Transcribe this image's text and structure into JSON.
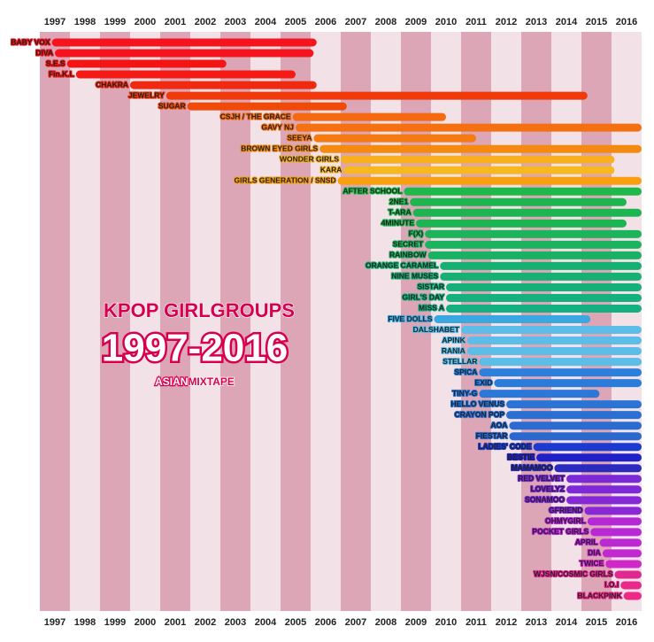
{
  "chart_data": {
    "type": "timeline",
    "title": "KPOP GIRLGROUPS",
    "subtitle": "1997-2016",
    "credit": [
      "ASIAN",
      "MIXTAPE"
    ],
    "xlim": [
      1996.5,
      2016.5
    ],
    "xticks": [
      1997,
      1998,
      1999,
      2000,
      2001,
      2002,
      2003,
      2004,
      2005,
      2006,
      2007,
      2008,
      2009,
      2010,
      2011,
      2012,
      2013,
      2014,
      2015,
      2016
    ],
    "stripe_colors": [
      "#dca6b6",
      "#f2e2e7"
    ],
    "bars": [
      {
        "name": "BABY VOX",
        "start": 1996.9,
        "end": 2005.7,
        "color": "#f5141e"
      },
      {
        "name": "DIVA",
        "start": 1997.0,
        "end": 2005.6,
        "color": "#f5141e"
      },
      {
        "name": "S.E.S",
        "start": 1997.4,
        "end": 2002.7,
        "color": "#f51414"
      },
      {
        "name": "Fin.K.L",
        "start": 1997.7,
        "end": 2005.0,
        "color": "#f51a14"
      },
      {
        "name": "CHAKRA",
        "start": 1999.5,
        "end": 2005.7,
        "color": "#f02a10"
      },
      {
        "name": "JEWELRY",
        "start": 2000.7,
        "end": 2014.7,
        "color": "#f03a0c"
      },
      {
        "name": "SUGAR",
        "start": 2001.4,
        "end": 2006.7,
        "color": "#f04a0a"
      },
      {
        "name": "CSJH / THE GRACE",
        "start": 2004.9,
        "end": 2010.0,
        "color": "#f56a10"
      },
      {
        "name": "GAVY NJ",
        "start": 2005.0,
        "end": 2016.5,
        "color": "#f57010"
      },
      {
        "name": "SEEYA",
        "start": 2005.6,
        "end": 2011.0,
        "color": "#f57a10"
      },
      {
        "name": "BROWN EYED GIRLS",
        "start": 2005.8,
        "end": 2016.5,
        "color": "#f58a10"
      },
      {
        "name": "WONDER GIRLS",
        "start": 2006.5,
        "end": 2015.6,
        "color": "#f8b020"
      },
      {
        "name": "KARA",
        "start": 2006.6,
        "end": 2015.6,
        "color": "#f8b820"
      },
      {
        "name": "GIRLS GENERATION / SNSD",
        "start": 2006.4,
        "end": 2016.5,
        "color": "#f8a010"
      },
      {
        "name": "AFTER SCHOOL",
        "start": 2008.6,
        "end": 2016.5,
        "color": "#1fb84a"
      },
      {
        "name": "2NE1",
        "start": 2008.8,
        "end": 2016.0,
        "color": "#1db54e"
      },
      {
        "name": "T-ARA",
        "start": 2008.9,
        "end": 2016.5,
        "color": "#1db552"
      },
      {
        "name": "4MINUTE",
        "start": 2009.0,
        "end": 2016.0,
        "color": "#1db552"
      },
      {
        "name": "F(X)",
        "start": 2009.3,
        "end": 2016.5,
        "color": "#1bb45a"
      },
      {
        "name": "SECRET",
        "start": 2009.3,
        "end": 2016.5,
        "color": "#1bb45e"
      },
      {
        "name": "RAINBOW",
        "start": 2009.4,
        "end": 2016.5,
        "color": "#19b262"
      },
      {
        "name": "ORANGE CARAMEL",
        "start": 2009.8,
        "end": 2016.5,
        "color": "#16b070"
      },
      {
        "name": "NINE MUSES",
        "start": 2009.8,
        "end": 2016.5,
        "color": "#16b074"
      },
      {
        "name": "SISTAR",
        "start": 2010.0,
        "end": 2016.5,
        "color": "#14b07a"
      },
      {
        "name": "GIRL'S DAY",
        "start": 2010.0,
        "end": 2016.5,
        "color": "#14b07e"
      },
      {
        "name": "MISS A",
        "start": 2010.0,
        "end": 2016.5,
        "color": "#14b082"
      },
      {
        "name": "FIVE DOLLS",
        "start": 2009.6,
        "end": 2014.8,
        "color": "#3aa8e0"
      },
      {
        "name": "DALSHABET",
        "start": 2010.5,
        "end": 2016.5,
        "color": "#5bbde8"
      },
      {
        "name": "APINK",
        "start": 2010.7,
        "end": 2016.5,
        "color": "#5bbde8"
      },
      {
        "name": "RANIA",
        "start": 2010.7,
        "end": 2016.5,
        "color": "#5bbde8"
      },
      {
        "name": "STELLAR",
        "start": 2011.1,
        "end": 2016.5,
        "color": "#5bbde8"
      },
      {
        "name": "SPICA",
        "start": 2011.1,
        "end": 2016.5,
        "color": "#2a80dc"
      },
      {
        "name": "EXID",
        "start": 2011.6,
        "end": 2016.5,
        "color": "#2a7cda"
      },
      {
        "name": "TINY-G",
        "start": 2011.1,
        "end": 2015.1,
        "color": "#2a78d8"
      },
      {
        "name": "HELLO VENUS",
        "start": 2012.0,
        "end": 2016.5,
        "color": "#2a74d6"
      },
      {
        "name": "CRAYON POP",
        "start": 2012.0,
        "end": 2016.5,
        "color": "#2a70d4"
      },
      {
        "name": "AOA",
        "start": 2012.1,
        "end": 2016.5,
        "color": "#2a6cd2"
      },
      {
        "name": "FIESTAR",
        "start": 2012.1,
        "end": 2016.5,
        "color": "#2a68d0"
      },
      {
        "name": "LADIES' CODE",
        "start": 2012.9,
        "end": 2016.5,
        "color": "#1a3ad0"
      },
      {
        "name": "BESTIE",
        "start": 2013.0,
        "end": 2016.5,
        "color": "#2020c8"
      },
      {
        "name": "MAMAMOO",
        "start": 2013.6,
        "end": 2016.5,
        "color": "#2a2ac0"
      },
      {
        "name": "RED VELVET",
        "start": 2014.0,
        "end": 2016.5,
        "color": "#7a28d8"
      },
      {
        "name": "LOVELYZ",
        "start": 2014.0,
        "end": 2016.5,
        "color": "#7e28d8"
      },
      {
        "name": "SONAMOO",
        "start": 2014.0,
        "end": 2016.5,
        "color": "#8428d8"
      },
      {
        "name": "GFRIEND",
        "start": 2014.6,
        "end": 2016.5,
        "color": "#8a28d8"
      },
      {
        "name": "OHMYGIRL",
        "start": 2014.7,
        "end": 2016.5,
        "color": "#b428d8"
      },
      {
        "name": "POCKET GIRLS",
        "start": 2014.8,
        "end": 2016.5,
        "color": "#b828d6"
      },
      {
        "name": "APRIL",
        "start": 2015.1,
        "end": 2016.5,
        "color": "#bc28d4"
      },
      {
        "name": "DIA",
        "start": 2015.2,
        "end": 2016.5,
        "color": "#c228d0"
      },
      {
        "name": "TWICE",
        "start": 2015.3,
        "end": 2016.5,
        "color": "#d028c8"
      },
      {
        "name": "WJSN/COSMIC GIRLS",
        "start": 2015.6,
        "end": 2016.5,
        "color": "#e02890"
      },
      {
        "name": "I.O.I",
        "start": 2015.8,
        "end": 2016.5,
        "color": "#e8288a"
      },
      {
        "name": "BLACKPINK",
        "start": 2015.9,
        "end": 2016.5,
        "color": "#f02888"
      }
    ]
  }
}
